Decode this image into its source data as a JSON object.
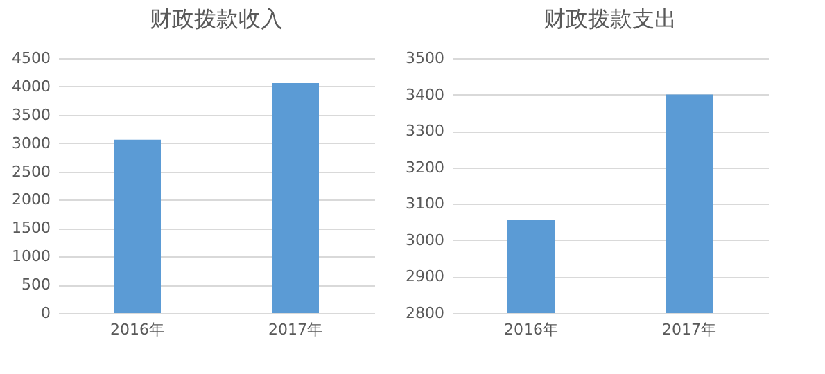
{
  "chart_data": [
    {
      "type": "bar",
      "title": "财政拨款收入",
      "categories": [
        "2016年",
        "2017年"
      ],
      "values": [
        3060,
        4060
      ],
      "color": "#5b9bd5",
      "ylim": [
        0,
        4500
      ],
      "yticks": [
        0,
        500,
        1000,
        1500,
        2000,
        2500,
        3000,
        3500,
        4000,
        4500
      ],
      "grid": "y"
    },
    {
      "type": "bar",
      "title": "财政拨款支出",
      "categories": [
        "2016年",
        "2017年"
      ],
      "values": [
        3057,
        3400
      ],
      "color": "#5b9bd5",
      "ylim": [
        2800,
        3500
      ],
      "yticks": [
        2800,
        2900,
        3000,
        3100,
        3200,
        3300,
        3400,
        3500
      ],
      "grid": "y"
    }
  ]
}
